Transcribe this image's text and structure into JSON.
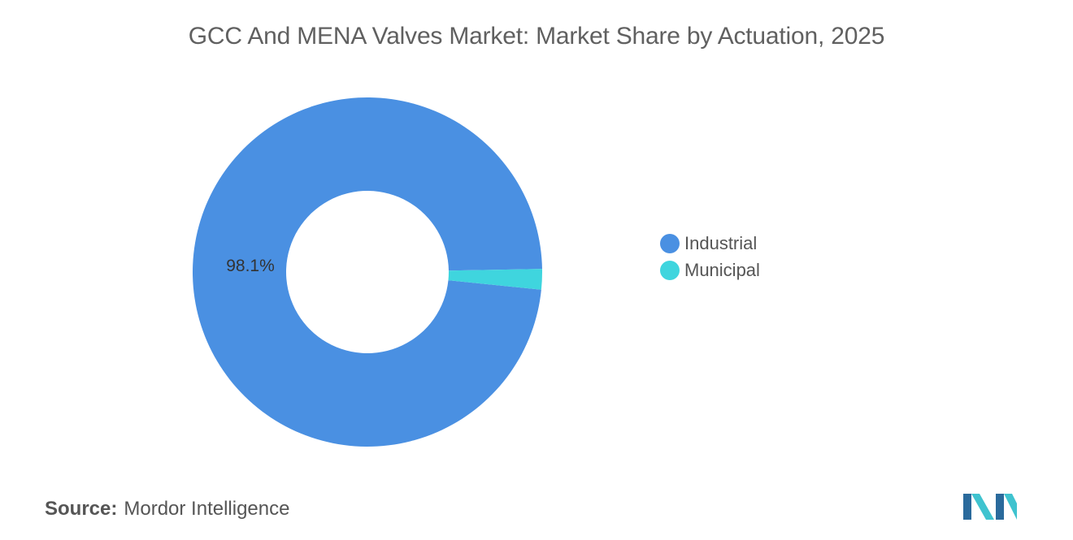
{
  "chart": {
    "title": "GCC And MENA Valves Market: Market Share by Actuation, 2025"
  },
  "chart_data": {
    "type": "pie",
    "variant": "donut",
    "title": "GCC And MENA Valves Market: Market Share by Actuation, 2025",
    "categories": [
      "Industrial",
      "Municipal"
    ],
    "values": [
      98.1,
      1.9
    ],
    "unit": "%",
    "data_labels": [
      "98.1%",
      ""
    ],
    "colors": [
      "#4a90e2",
      "#3fd5de"
    ],
    "legend_position": "right"
  },
  "legend": {
    "items": [
      {
        "label": "Industrial",
        "color": "#4a90e2"
      },
      {
        "label": "Municipal",
        "color": "#3fd5de"
      }
    ]
  },
  "source": {
    "label": "Source:",
    "text": "Mordor Intelligence"
  },
  "logo": {
    "icon": "mordor-intelligence-logo-icon",
    "colors": [
      "#2a6a9c",
      "#3fc3cf"
    ]
  }
}
